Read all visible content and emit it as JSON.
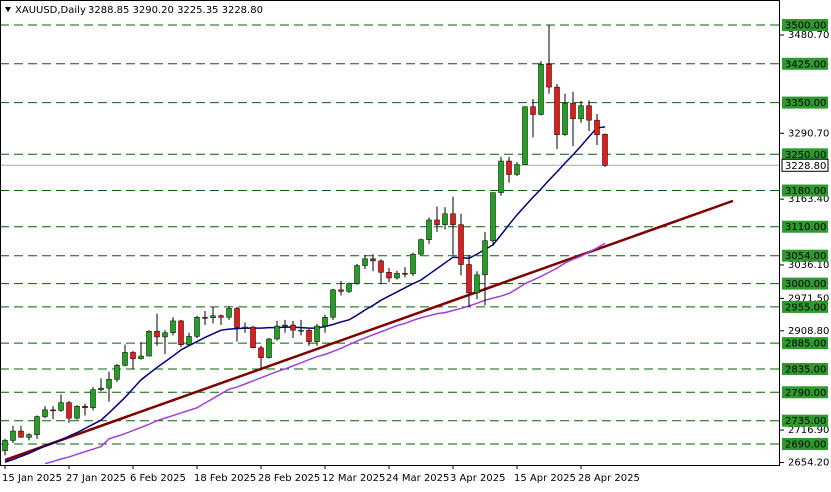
{
  "chart_data": {
    "type": "candlestick",
    "title": "XAUUSD,Daily",
    "subtitle": "3288.85 3290.20 3225.35 3228.80",
    "categories": [
      "15 Jan 2025",
      null,
      null,
      null,
      null,
      null,
      null,
      null,
      "27 Jan 2025",
      null,
      null,
      null,
      null,
      null,
      null,
      null,
      "6 Feb 2025",
      null,
      null,
      null,
      null,
      null,
      null,
      null,
      "18 Feb 2025",
      null,
      null,
      null,
      null,
      null,
      null,
      null,
      "28 Feb 2025",
      null,
      null,
      null,
      null,
      null,
      null,
      null,
      "12 Mar 2025",
      null,
      null,
      null,
      null,
      null,
      null,
      null,
      "24 Mar 2025",
      null,
      null,
      null,
      null,
      null,
      null,
      null,
      "3 Apr 2025",
      null,
      null,
      null,
      null,
      null,
      null,
      null,
      "15 Apr 2025",
      null,
      null,
      null,
      null,
      null,
      null,
      null,
      "28 Apr 2025",
      null,
      null,
      null
    ],
    "open": [
      2677,
      2697,
      2715,
      2703,
      2708,
      2743,
      2756,
      2755,
      2770,
      2740,
      2763,
      2760,
      2795,
      2798,
      2815,
      2842,
      2867,
      2855,
      2860,
      2908,
      2897,
      2905,
      2928,
      2882,
      2898,
      2935,
      2934,
      2938,
      2935,
      2952,
      2915,
      2916,
      2876,
      2857,
      2893,
      2918,
      2920,
      2910,
      2910,
      2888,
      2918,
      2935,
      2988,
      2985,
      3000,
      3035,
      3048,
      3044,
      3022,
      3011,
      3020,
      3019,
      3057,
      3085,
      3123,
      3114,
      3135,
      3114,
      3037,
      2982,
      3017,
      3083,
      3176,
      3237,
      3211,
      3230,
      3342,
      3327,
      3424,
      3380,
      3288,
      3349,
      3319,
      3344,
      3316,
      3288.85
    ],
    "high": [
      2700,
      2725,
      2725,
      2711,
      2745,
      2763,
      2763,
      2786,
      2773,
      2765,
      2768,
      2800,
      2817,
      2830,
      2845,
      2882,
      2870,
      2887,
      2910,
      2942,
      2910,
      2935,
      2930,
      2905,
      2938,
      2947,
      2955,
      2940,
      2956,
      2955,
      2925,
      2918,
      2880,
      2895,
      2928,
      2930,
      2928,
      2930,
      2912,
      2922,
      2940,
      2990,
      3005,
      3002,
      3038,
      3055,
      3057,
      3047,
      3030,
      3025,
      3032,
      3060,
      3087,
      3128,
      3149,
      3148,
      3168,
      3135,
      3055,
      3024,
      3100,
      3176,
      3245,
      3245,
      3235,
      3343,
      3357,
      3430,
      3500,
      3386,
      3367,
      3371,
      3353,
      3354,
      3328,
      3290.2
    ],
    "low": [
      2668,
      2692,
      2702,
      2697,
      2700,
      2740,
      2738,
      2752,
      2731,
      2737,
      2745,
      2755,
      2792,
      2772,
      2810,
      2840,
      2834,
      2853,
      2860,
      2880,
      2864,
      2900,
      2877,
      2880,
      2895,
      2920,
      2923,
      2920,
      2930,
      2888,
      2905,
      2875,
      2832,
      2855,
      2890,
      2905,
      2895,
      2900,
      2880,
      2880,
      2905,
      2930,
      2977,
      2982,
      2998,
      3028,
      3024,
      2999,
      3003,
      3008,
      3012,
      3015,
      3055,
      3077,
      3100,
      3105,
      3055,
      3016,
      2956,
      2970,
      2958,
      3073,
      3170,
      3195,
      3208,
      3230,
      3283,
      3325,
      3367,
      3260,
      3286,
      3266,
      3311,
      3295,
      3268,
      3225.35
    ],
    "close": [
      2697,
      2715,
      2703,
      2708,
      2743,
      2756,
      2755,
      2770,
      2740,
      2763,
      2760,
      2795,
      2798,
      2815,
      2842,
      2867,
      2855,
      2860,
      2908,
      2897,
      2905,
      2928,
      2882,
      2898,
      2935,
      2934,
      2938,
      2935,
      2952,
      2915,
      2916,
      2876,
      2857,
      2893,
      2918,
      2920,
      2910,
      2910,
      2888,
      2918,
      2935,
      2988,
      2985,
      3000,
      3035,
      3048,
      3044,
      3022,
      3011,
      3020,
      3019,
      3057,
      3085,
      3123,
      3114,
      3135,
      3114,
      3037,
      2982,
      3017,
      3083,
      3176,
      3237,
      3211,
      3230,
      3342,
      3327,
      3424,
      3380,
      3288,
      3349,
      3319,
      3344,
      3316,
      3288,
      3228.8
    ],
    "up_color": "#22a022",
    "down_color": "#e31b1b",
    "series": [
      {
        "color": "#000080",
        "values": [
          2655,
          2660,
          2666,
          2672,
          2679,
          2686,
          2692,
          2698,
          2705,
          2712,
          2720,
          2728,
          2736,
          2750,
          2765,
          2780,
          2797,
          2814,
          2826,
          2838,
          2849,
          2860,
          2872,
          2880,
          2888,
          2896,
          2903,
          2910,
          2912,
          2913,
          2914,
          2914,
          2914,
          2915,
          2915,
          2916,
          2916,
          2915,
          2914,
          2914,
          2917,
          2921,
          2926,
          2930,
          2939,
          2949,
          2958,
          2968,
          2976,
          2984,
          2992,
          3000,
          3007,
          3018,
          3029,
          3040,
          3051,
          3050,
          3049,
          3057,
          3066,
          3075,
          3094,
          3114,
          3133,
          3150,
          3167,
          3183,
          3200,
          3216,
          3233,
          3249,
          3266,
          3284,
          3301,
          3303
        ]
      },
      {
        "color": "#a040e0",
        "values": [
          null,
          null,
          null,
          null,
          null,
          2652,
          2656,
          2661,
          2665,
          2670,
          2675,
          2680,
          2685,
          2700,
          2705,
          2710,
          2716,
          2722,
          2728,
          2735,
          2740,
          2745,
          2750,
          2755,
          2760,
          2769,
          2778,
          2787,
          2796,
          2800,
          2806,
          2812,
          2818,
          2824,
          2830,
          2835,
          2841,
          2847,
          2853,
          2859,
          2863,
          2869,
          2875,
          2882,
          2889,
          2895,
          2901,
          2907,
          2913,
          2919,
          2923,
          2929,
          2934,
          2938,
          2942,
          2944,
          2948,
          2952,
          2957,
          2962,
          2968,
          2972,
          2976,
          2981,
          2990,
          3000,
          3007,
          3014,
          3022,
          3030,
          3040,
          3047,
          3053,
          3061,
          3069,
          3078
        ]
      }
    ],
    "trendline": {
      "color": "#800000",
      "x": [
        0,
        91
      ],
      "y": [
        2659,
        3160
      ]
    },
    "levels_color": "#006400",
    "levels": [
      {
        "value": 3500,
        "label": "3500.00"
      },
      {
        "value": 3425,
        "label": "3425.00"
      },
      {
        "value": 3350,
        "label": "3350.00"
      },
      {
        "value": 3250,
        "label": "3250.00"
      },
      {
        "value": 3180,
        "label": "3180.00"
      },
      {
        "value": 3110,
        "label": "3110.00"
      },
      {
        "value": 3054,
        "label": "3054.00"
      },
      {
        "value": 3000,
        "label": "3000.00"
      },
      {
        "value": 2955,
        "label": "2955.00"
      },
      {
        "value": 2885,
        "label": "2885.00"
      },
      {
        "value": 2835,
        "label": "2835.00"
      },
      {
        "value": 2790,
        "label": "2790.00"
      },
      {
        "value": 2735,
        "label": "2735.00"
      },
      {
        "value": 2690,
        "label": "2690.00"
      }
    ],
    "bid": {
      "value": 3228.8,
      "label": "3228.80"
    },
    "ylim": [
      2649.4,
      3548.3
    ],
    "yticks": [
      {
        "value": 3480.7,
        "label": "3480.70"
      },
      {
        "value": 3290.7,
        "label": "3290.70"
      },
      {
        "value": 3163.4,
        "label": "3163.40"
      },
      {
        "value": 3036.1,
        "label": "3036.10"
      },
      {
        "value": 2971.5,
        "label": "2971.50"
      },
      {
        "value": 2908.8,
        "label": "2908.80"
      },
      {
        "value": 2716.9,
        "label": "2716.90"
      },
      {
        "value": 2654.2,
        "label": "2654.20"
      }
    ]
  }
}
